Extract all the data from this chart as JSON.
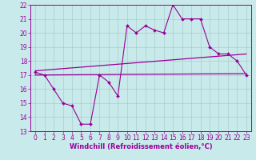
{
  "xlabel": "Windchill (Refroidissement éolien,°C)",
  "bg_color": "#c8eaea",
  "line_color": "#990099",
  "grid_color": "#aacccc",
  "xlim": [
    -0.5,
    23.5
  ],
  "ylim": [
    13,
    22
  ],
  "yticks": [
    13,
    14,
    15,
    16,
    17,
    18,
    19,
    20,
    21,
    22
  ],
  "xticks": [
    0,
    1,
    2,
    3,
    4,
    5,
    6,
    7,
    8,
    9,
    10,
    11,
    12,
    13,
    14,
    15,
    16,
    17,
    18,
    19,
    20,
    21,
    22,
    23
  ],
  "main_data": [
    17.2,
    17.0,
    16.0,
    15.0,
    14.8,
    13.5,
    13.5,
    17.0,
    16.5,
    15.5,
    20.5,
    20.0,
    20.5,
    20.2,
    20.0,
    22.0,
    21.0,
    21.0,
    21.0,
    19.0,
    18.5,
    18.5,
    18.0,
    17.0
  ],
  "upper_line": [
    17.3,
    18.5
  ],
  "lower_line": [
    17.0,
    17.1
  ],
  "xlabel_fontsize": 6,
  "tick_fontsize": 5.5
}
